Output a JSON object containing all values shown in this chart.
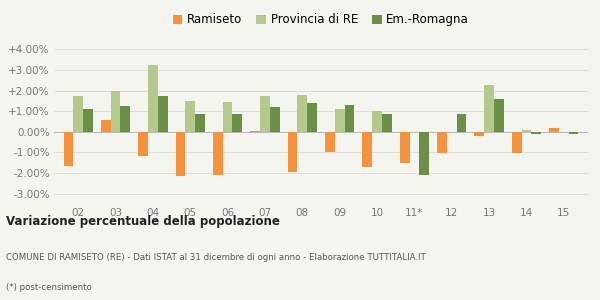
{
  "categories": [
    "02",
    "03",
    "04",
    "05",
    "06",
    "07",
    "08",
    "09",
    "10",
    "11*",
    "12",
    "13",
    "14",
    "15"
  ],
  "ramiseto": [
    -1.65,
    0.55,
    -1.15,
    -2.15,
    -2.1,
    0.05,
    -1.95,
    -1.0,
    -1.7,
    -1.5,
    -1.05,
    -0.2,
    -1.05,
    0.2
  ],
  "provincia": [
    1.75,
    2.0,
    3.25,
    1.5,
    1.45,
    1.75,
    1.8,
    1.1,
    1.0,
    -0.05,
    0.0,
    2.25,
    0.1,
    0.0
  ],
  "emromagna": [
    1.1,
    1.25,
    1.75,
    0.85,
    0.85,
    1.2,
    1.4,
    1.3,
    0.85,
    -2.1,
    0.85,
    1.6,
    -0.1,
    -0.1
  ],
  "ramiseto_color": "#f5923e",
  "provincia_color": "#b5c98e",
  "emromagna_color": "#6b8f47",
  "background_color": "#f5f5f0",
  "title": "Variazione percentuale della popolazione",
  "subtitle": "COMUNE DI RAMISETO (RE) - Dati ISTAT al 31 dicembre di ogni anno - Elaborazione TUTTITALIA.IT",
  "footnote": "(*) post-censimento",
  "legend_labels": [
    "Ramiseto",
    "Provincia di RE",
    "Em.-Romagna"
  ],
  "ylim": [
    -3.5,
    4.5
  ],
  "yticks": [
    -3.0,
    -2.0,
    -1.0,
    0.0,
    1.0,
    2.0,
    3.0,
    4.0
  ],
  "ytick_labels": [
    "-3.00%",
    "-2.00%",
    "-1.00%",
    "0.00%",
    "+1.00%",
    "+2.00%",
    "+3.00%",
    "+4.00%"
  ]
}
